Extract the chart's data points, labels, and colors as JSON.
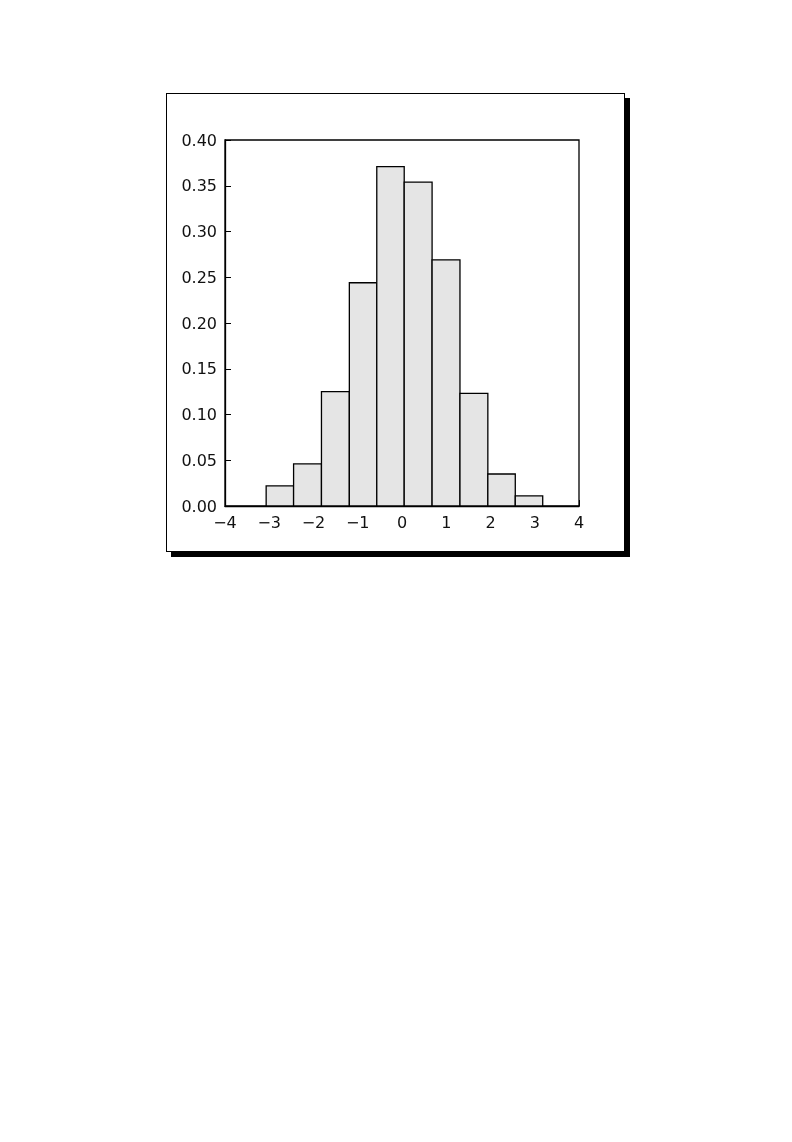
{
  "chart_data": {
    "type": "histogram",
    "color": "#e5e5e5",
    "bins": [
      -3.07,
      -2.45,
      -1.82,
      -1.19,
      -0.57,
      0.05,
      0.68,
      1.31,
      1.94,
      2.56,
      3.18
    ],
    "values": [
      0.022,
      0.046,
      0.125,
      0.244,
      0.371,
      0.354,
      0.269,
      0.123,
      0.035,
      0.011
    ],
    "xlim": [
      -4,
      4
    ],
    "xticks": [
      {
        "value": -4,
        "label": "−4"
      },
      {
        "value": -3,
        "label": "−3"
      },
      {
        "value": -2,
        "label": "−2"
      },
      {
        "value": -1,
        "label": "−1"
      },
      0,
      1,
      2,
      3,
      4
    ],
    "ylim": [
      0,
      0.4
    ],
    "yticks": [
      {
        "value": 0,
        "label": "0.00"
      },
      0.05,
      {
        "value": 0.1,
        "label": "0.10"
      },
      0.15,
      {
        "value": 0.2,
        "label": "0.20"
      },
      0.25,
      {
        "value": 0.3,
        "label": "0.30"
      },
      0.35,
      {
        "value": 0.4,
        "label": "0.40"
      }
    ],
    "grid": false
  }
}
